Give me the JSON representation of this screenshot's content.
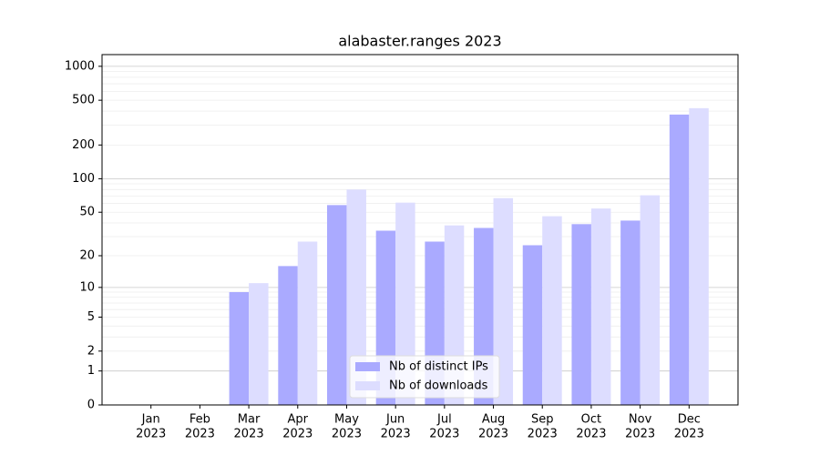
{
  "chart_data": {
    "type": "bar",
    "title": "alabaster.ranges 2023",
    "categories": [
      [
        "Jan",
        "2023"
      ],
      [
        "Feb",
        "2023"
      ],
      [
        "Mar",
        "2023"
      ],
      [
        "Apr",
        "2023"
      ],
      [
        "May",
        "2023"
      ],
      [
        "Jun",
        "2023"
      ],
      [
        "Jul",
        "2023"
      ],
      [
        "Aug",
        "2023"
      ],
      [
        "Sep",
        "2023"
      ],
      [
        "Oct",
        "2023"
      ],
      [
        "Nov",
        "2023"
      ],
      [
        "Dec",
        "2023"
      ]
    ],
    "series": [
      {
        "name": "Nb of distinct IPs",
        "color": "#aaaaff",
        "values": [
          0,
          0,
          9,
          16,
          58,
          34,
          27,
          36,
          25,
          39,
          42,
          373
        ]
      },
      {
        "name": "Nb of downloads",
        "color": "#ddddff",
        "values": [
          0,
          0,
          11,
          27,
          80,
          61,
          38,
          67,
          46,
          54,
          71,
          425
        ]
      }
    ],
    "yscale": "log1p",
    "ylim": [
      0,
      1270
    ],
    "yticks": [
      0,
      1,
      2,
      5,
      10,
      20,
      50,
      100,
      200,
      500,
      1000
    ],
    "ygrid_major": [
      1,
      10,
      100,
      1000
    ],
    "ygrid_minor": [
      2,
      3,
      4,
      5,
      6,
      7,
      8,
      9,
      20,
      30,
      40,
      50,
      60,
      70,
      80,
      90,
      200,
      300,
      400,
      500,
      600,
      700,
      800,
      900
    ],
    "legend": "lower center"
  }
}
